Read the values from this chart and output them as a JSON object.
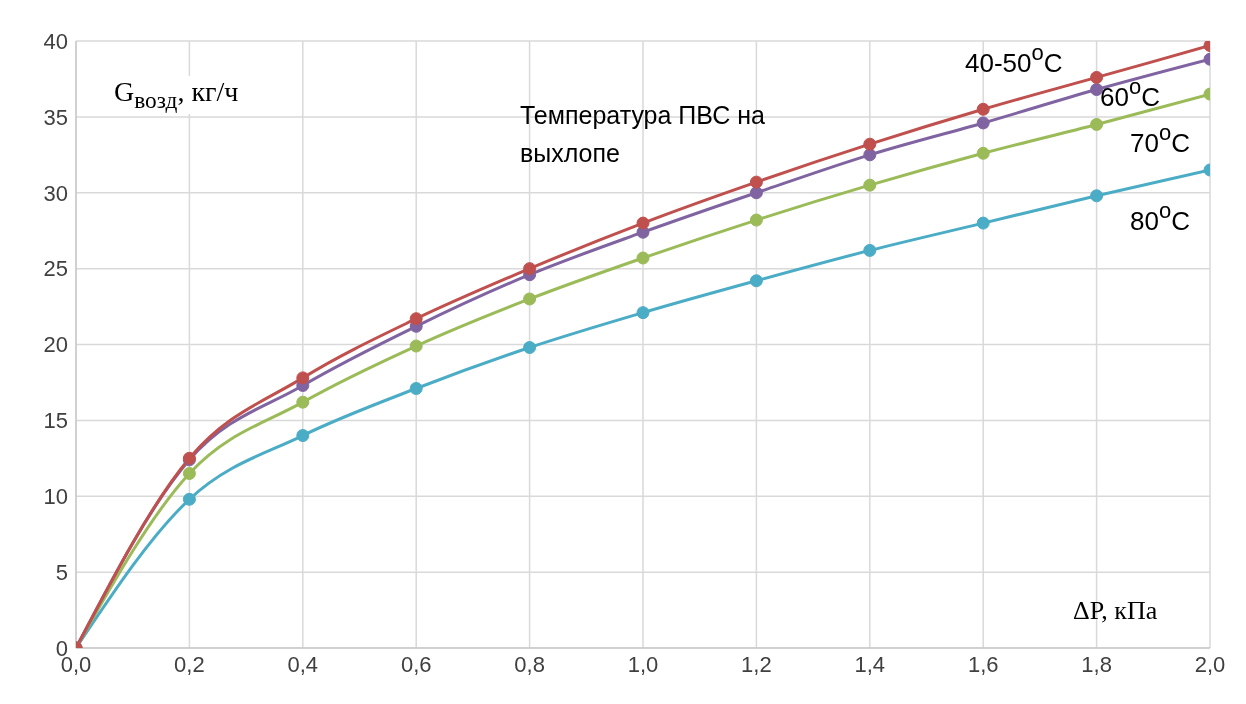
{
  "chart_data": {
    "type": "line",
    "xlabel": "ΔP, кПа",
    "ylabel": "G$_{возд}$, кг/ч",
    "annotations": [
      "Температура ПВС на выхлопе"
    ],
    "x": [
      0,
      0.2,
      0.4,
      0.6,
      0.8,
      1.0,
      1.2,
      1.4,
      1.6,
      1.8,
      2.0
    ],
    "series": [
      {
        "name": "40-50$^{o}$C",
        "color": "#c0504d",
        "values": [
          0,
          12.5,
          17.8,
          21.7,
          25.0,
          28.0,
          30.7,
          33.2,
          35.5,
          37.6,
          39.7
        ]
      },
      {
        "name": "60$^{o}$C",
        "color": "#8064a2",
        "values": [
          0,
          12.4,
          17.3,
          21.2,
          24.6,
          27.4,
          30.0,
          32.5,
          34.6,
          36.8,
          38.8
        ]
      },
      {
        "name": "70$^{o}$C",
        "color": "#9bbb59",
        "values": [
          0,
          11.5,
          16.2,
          19.9,
          23.0,
          25.7,
          28.2,
          30.5,
          32.6,
          34.5,
          36.5
        ]
      },
      {
        "name": "80$^{o}$C",
        "color": "#4bacc6",
        "values": [
          0,
          9.8,
          14.0,
          17.1,
          19.8,
          22.1,
          24.2,
          26.2,
          28.0,
          29.8,
          31.5
        ]
      }
    ],
    "xlim": [
      0,
      2.0
    ],
    "ylim": [
      0,
      40
    ],
    "xticks": [
      {
        "value": 0,
        "label": "0,0"
      },
      {
        "value": 0.2,
        "label": "0,2"
      },
      {
        "value": 0.4,
        "label": "0,4"
      },
      {
        "value": 0.6,
        "label": "0,6"
      },
      {
        "value": 0.8,
        "label": "0,8"
      },
      {
        "value": 1.0,
        "label": "1,0"
      },
      {
        "value": 1.2,
        "label": "1,2"
      },
      {
        "value": 1.4,
        "label": "1,4"
      },
      {
        "value": 1.6,
        "label": "1,6"
      },
      {
        "value": 1.8,
        "label": "1,8"
      },
      {
        "value": 2.0,
        "label": "2,0"
      }
    ],
    "yticks": [
      0,
      5,
      10,
      15,
      20,
      25,
      30,
      35,
      40
    ],
    "grid": true,
    "marker": "circle",
    "line_style": "solid"
  }
}
